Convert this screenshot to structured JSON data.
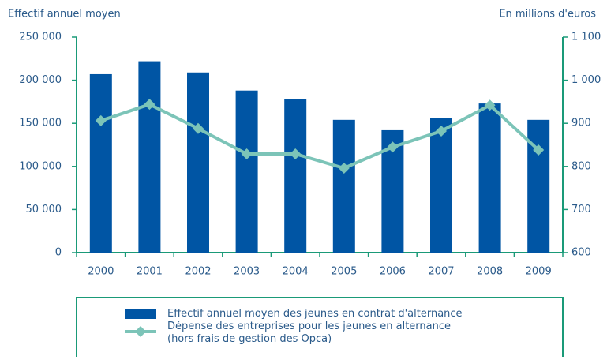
{
  "chart_data": {
    "type": "bar",
    "y_axis_label": "Effectif annuel moyen",
    "y2_axis_label": "En millions d'euros",
    "categories": [
      "2000",
      "2001",
      "2002",
      "2003",
      "2004",
      "2005",
      "2006",
      "2007",
      "2008",
      "2009"
    ],
    "series": [
      {
        "name": "Effectif annuel moyen des jeunes en contrat d'alternance",
        "type": "bar",
        "color": "#0055a4",
        "values": [
          207000,
          222000,
          209000,
          188000,
          178000,
          154000,
          142000,
          156000,
          173000,
          154000
        ]
      },
      {
        "name": "Dépense des entreprises pour les jeunes en alternance\n(hors frais de gestion des Opca)",
        "type": "line",
        "axis": "y2",
        "color": "#7cc4b8",
        "values": [
          906,
          944,
          888,
          829,
          829,
          796,
          845,
          882,
          942,
          838
        ]
      }
    ],
    "ylim": [
      0,
      250000
    ],
    "yticks": [
      0,
      {
        "value": 50000,
        "label": "50 000"
      },
      {
        "value": 100000,
        "label": "100 000"
      },
      {
        "value": 150000,
        "label": "150 000"
      },
      {
        "value": 200000,
        "label": "200 000"
      },
      {
        "value": 250000,
        "label": "250 000"
      }
    ],
    "y2lim": [
      600,
      1100
    ],
    "y2ticks": [
      600,
      700,
      800,
      900,
      {
        "value": 1000,
        "label": "1 000"
      },
      {
        "value": 1100,
        "label": "1 100"
      }
    ],
    "axis_color": "#1a9a78",
    "grid": false
  }
}
